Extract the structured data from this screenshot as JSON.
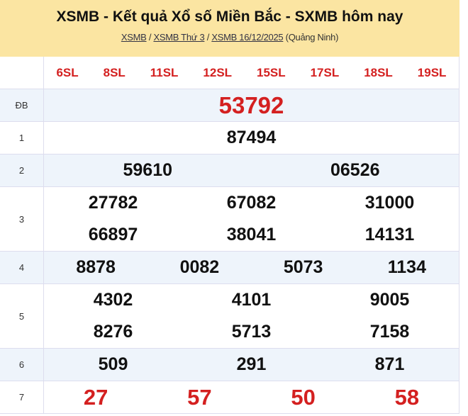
{
  "header": {
    "title": "XSMB - Kết quả Xổ số Miền Bắc - SXMB hôm nay",
    "breadcrumb": [
      "XSMB",
      "XSMB Thứ 3",
      "XSMB 16/12/2025"
    ],
    "separator": "/",
    "province": "(Quảng Ninh)"
  },
  "sl_codes": [
    "6SL",
    "8SL",
    "11SL",
    "12SL",
    "15SL",
    "17SL",
    "18SL",
    "19SL"
  ],
  "prizes": [
    {
      "label": "ĐB",
      "numbers": [
        "53792"
      ]
    },
    {
      "label": "1",
      "numbers": [
        "87494"
      ]
    },
    {
      "label": "2",
      "numbers": [
        "59610",
        "06526"
      ]
    },
    {
      "label": "3",
      "numbers": [
        "27782",
        "67082",
        "31000",
        "66897",
        "38041",
        "14131"
      ]
    },
    {
      "label": "4",
      "numbers": [
        "8878",
        "0082",
        "5073",
        "1134"
      ]
    },
    {
      "label": "5",
      "numbers": [
        "4302",
        "4101",
        "9005",
        "8276",
        "5713",
        "7158"
      ]
    },
    {
      "label": "6",
      "numbers": [
        "509",
        "291",
        "871"
      ]
    },
    {
      "label": "7",
      "numbers": [
        "27",
        "57",
        "50",
        "58"
      ]
    }
  ],
  "colors": {
    "header_bg": "#fbe5a2",
    "highlight": "#d42020",
    "alt_row": "#eef4fb"
  }
}
